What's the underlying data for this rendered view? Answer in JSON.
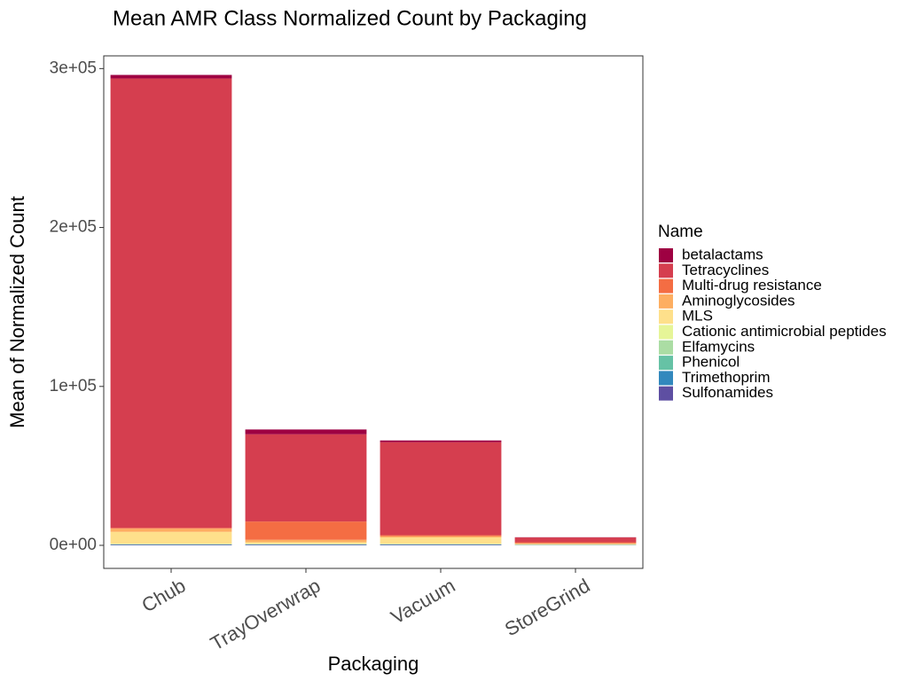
{
  "chart_data": {
    "type": "bar",
    "stacked": true,
    "title": "Mean AMR Class Normalized Count by Packaging",
    "xlabel": "Packaging",
    "ylabel": "Mean of Normalized Count",
    "categories": [
      "Chub",
      "TrayOverwrap",
      "Vacuum",
      "StoreGrind"
    ],
    "ylim": [
      -14500,
      308000
    ],
    "yticks": [
      0,
      100000,
      200000,
      300000
    ],
    "ytick_labels": [
      "0e+00",
      "1e+05",
      "2e+05",
      "3e+05"
    ],
    "grid": false,
    "legend": {
      "title": "Name",
      "position": "right"
    },
    "series": [
      {
        "name": "Sulfonamides",
        "color": "#5E4FA2",
        "values": [
          300,
          300,
          300,
          100
        ]
      },
      {
        "name": "Trimethoprim",
        "color": "#3288BD",
        "values": [
          200,
          200,
          200,
          100
        ]
      },
      {
        "name": "Phenicol",
        "color": "#66C2A5",
        "values": [
          200,
          200,
          200,
          100
        ]
      },
      {
        "name": "Elfamycins",
        "color": "#ABDDA4",
        "values": [
          100,
          100,
          100,
          50
        ]
      },
      {
        "name": "Cationic antimicrobial peptides",
        "color": "#E6F598",
        "values": [
          200,
          200,
          200,
          100
        ]
      },
      {
        "name": "MLS",
        "color": "#FEE08B",
        "values": [
          7500,
          1000,
          4000,
          500
        ]
      },
      {
        "name": "Aminoglycosides",
        "color": "#FDAE61",
        "values": [
          2000,
          1500,
          800,
          300
        ]
      },
      {
        "name": "Multi-drug resistance",
        "color": "#F46D43",
        "values": [
          500,
          11500,
          600,
          700
        ]
      },
      {
        "name": "Tetracyclines",
        "color": "#D53E4F",
        "values": [
          282800,
          54900,
          58500,
          3000
        ]
      },
      {
        "name": "betalactams",
        "color": "#9E0142",
        "values": [
          2200,
          3000,
          1100,
          150
        ]
      }
    ]
  }
}
